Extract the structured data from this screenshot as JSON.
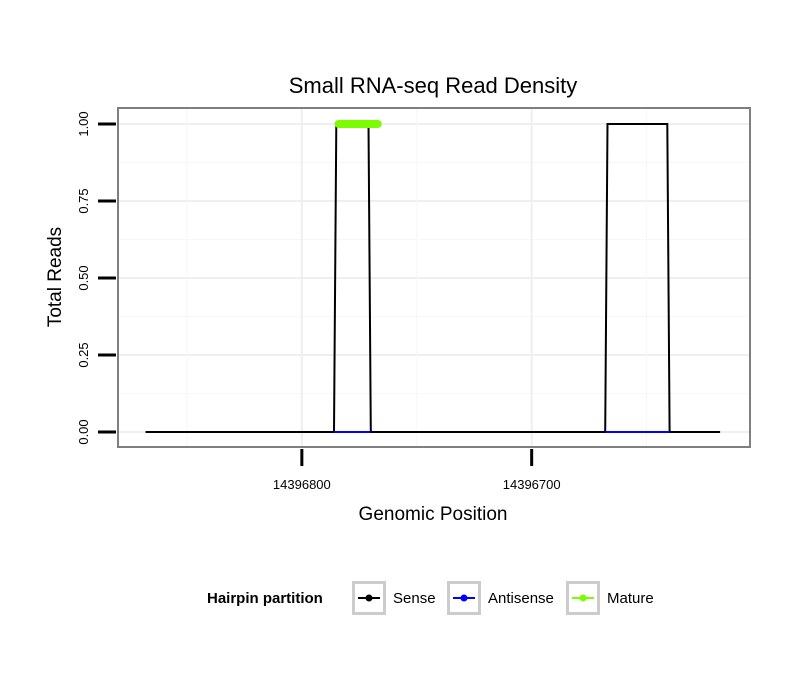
{
  "chart_data": {
    "type": "line",
    "title": "Small RNA-seq Read Density",
    "xlabel": "Genomic Position",
    "ylabel": "Total Reads",
    "x_reversed": true,
    "xlim": [
      14396880,
      14396605
    ],
    "ylim": [
      0,
      1
    ],
    "x_ticks": [
      14396800,
      14396700
    ],
    "x_tick_labels": [
      "14396800",
      "14396700"
    ],
    "y_ticks": [
      0,
      0.25,
      0.5,
      0.75,
      1
    ],
    "y_tick_labels": [
      "0.00",
      "0.25",
      "0.50",
      "0.75",
      "1.00"
    ],
    "grid": true,
    "legend_position": "bottom",
    "legend_title": "Hairpin partition",
    "series": [
      {
        "name": "Sense",
        "color": "#000000",
        "x": [
          14396868,
          14396786,
          14396785,
          14396771,
          14396770,
          14396668,
          14396667,
          14396641,
          14396640,
          14396618
        ],
        "y": [
          0,
          0,
          1,
          1,
          0,
          0,
          1,
          1,
          0,
          0
        ]
      },
      {
        "name": "Antisense",
        "color": "#0000ff",
        "x": [
          14396786,
          14396770,
          14396668,
          14396640
        ],
        "y": [
          0,
          0,
          0,
          0
        ],
        "segments": [
          [
            0,
            1
          ],
          [
            2,
            3
          ]
        ]
      },
      {
        "name": "Mature",
        "color": "#7cfc00",
        "x": [
          14396784,
          14396767
        ],
        "y": [
          1,
          1
        ]
      }
    ]
  }
}
